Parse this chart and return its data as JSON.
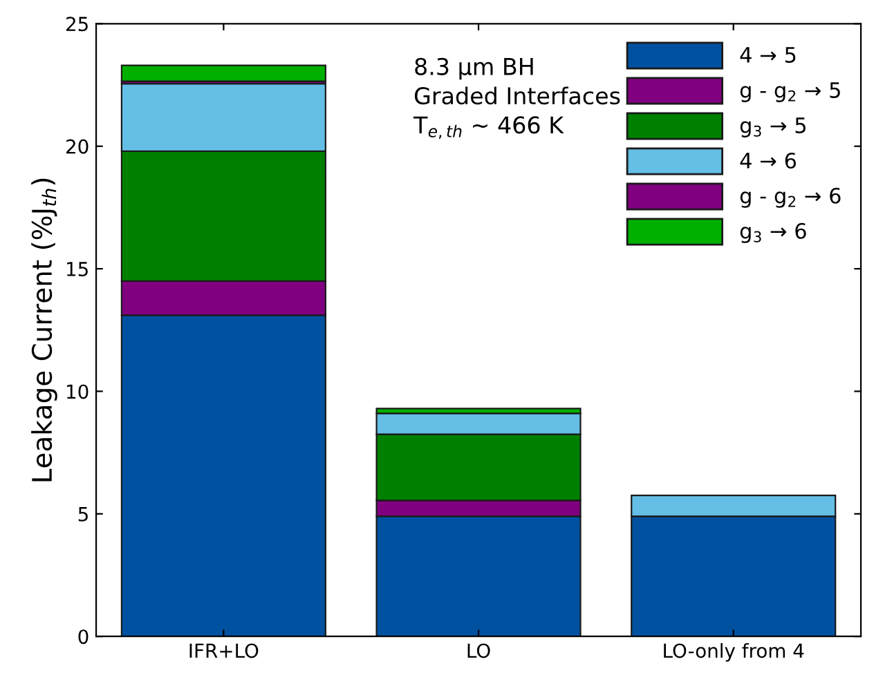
{
  "chart_data": {
    "type": "bar",
    "stacked": true,
    "ylabel": "Leakage Current (%J$_{th}$)",
    "categories": [
      "IFR+LO",
      "LO",
      "LO-only from 4"
    ],
    "series": [
      {
        "name": "4 → 5",
        "color": "#0052a0",
        "values": [
          13.1,
          4.9,
          4.9
        ]
      },
      {
        "name": "g - g$_{2}$ → 5",
        "color": "#800080",
        "values": [
          1.4,
          0.65,
          null
        ]
      },
      {
        "name": "g$_{3}$ → 5",
        "color": "#008000",
        "values": [
          5.3,
          2.7,
          null
        ]
      },
      {
        "name": "4 → 6",
        "color": "#64bee6",
        "values": [
          2.75,
          0.85,
          0.85
        ]
      },
      {
        "name": "g - g$_{2}$ → 6",
        "color": "#800080",
        "values": [
          0.1,
          null,
          null
        ]
      },
      {
        "name": "g$_{3}$ → 6",
        "color": "#00b000",
        "values": [
          0.65,
          0.2,
          null
        ]
      }
    ],
    "ylim": [
      0,
      25
    ],
    "yticks": [
      0,
      5,
      10,
      15,
      20,
      25
    ],
    "grid": false,
    "legend": "top right",
    "annotations": [
      "8.3 µm BH\nGraded Interfaces\nT$_{e,th}$ ~ 466 K"
    ]
  }
}
